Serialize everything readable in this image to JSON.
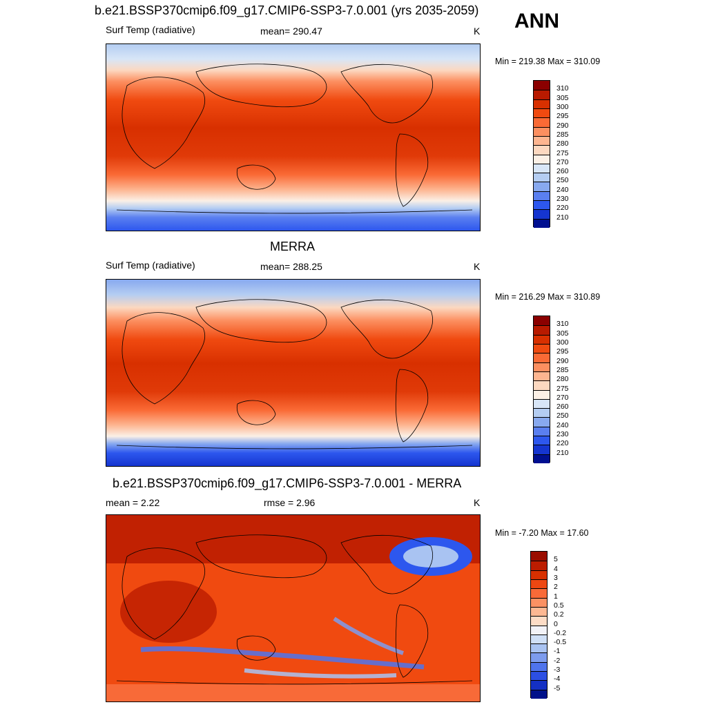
{
  "header": {
    "title": "b.e21.BSSP370cmip6.f09_g17.CMIP6-SSP3-7.0.001 (yrs 2035-2059)",
    "season": "ANN"
  },
  "panels": [
    {
      "title": "",
      "left_label": "Surf Temp (radiative)",
      "center_label": "mean= 290.47",
      "units": "K",
      "minmax": "Min = 219.38 Max = 310.09",
      "colorbar": {
        "labels": [
          "310",
          "305",
          "300",
          "295",
          "290",
          "285",
          "280",
          "275",
          "270",
          "260",
          "250",
          "240",
          "230",
          "220",
          "210"
        ],
        "colors": [
          "#8b0000",
          "#b81a00",
          "#d83000",
          "#f04a10",
          "#fa6a35",
          "#fc8f60",
          "#fdb590",
          "#fcd8c0",
          "#fbf0e6",
          "#d8e6f7",
          "#b4cdf2",
          "#88a9ef",
          "#5a7ff0",
          "#2d57ee",
          "#1535d0",
          "#000f90"
        ]
      }
    },
    {
      "title": "MERRA",
      "left_label": "Surf Temp (radiative)",
      "center_label": "mean= 288.25",
      "units": "K",
      "minmax": "Min = 216.29 Max = 310.89",
      "colorbar": {
        "labels": [
          "310",
          "305",
          "300",
          "295",
          "290",
          "285",
          "280",
          "275",
          "270",
          "260",
          "250",
          "240",
          "230",
          "220",
          "210"
        ],
        "colors": [
          "#8b0000",
          "#b81a00",
          "#d83000",
          "#f04a10",
          "#fa6a35",
          "#fc8f60",
          "#fdb590",
          "#fcd8c0",
          "#fbf0e6",
          "#d8e6f7",
          "#b4cdf2",
          "#88a9ef",
          "#5a7ff0",
          "#2d57ee",
          "#1535d0",
          "#000f90"
        ]
      }
    },
    {
      "title": "b.e21.BSSP370cmip6.f09_g17.CMIP6-SSP3-7.0.001 - MERRA",
      "left_label": "mean =   2.22",
      "center_label": "rmse =   2.96",
      "units": "K",
      "minmax": "Min =  -7.20 Max =  17.60",
      "colorbar": {
        "labels": [
          "5",
          "4",
          "3",
          "2",
          "1",
          "0.5",
          "0.2",
          "0",
          "-0.2",
          "-0.5",
          "-1",
          "-2",
          "-3",
          "-4",
          "-5"
        ],
        "colors": [
          "#9a0d00",
          "#bc1c00",
          "#d83000",
          "#ee4712",
          "#f86a38",
          "#fb9163",
          "#fdb893",
          "#fddcc6",
          "#f2f2f7",
          "#cfdff6",
          "#a9c3f2",
          "#7d9cee",
          "#4f74ec",
          "#2c4fe4",
          "#1430c4",
          "#00118a"
        ]
      }
    }
  ]
}
